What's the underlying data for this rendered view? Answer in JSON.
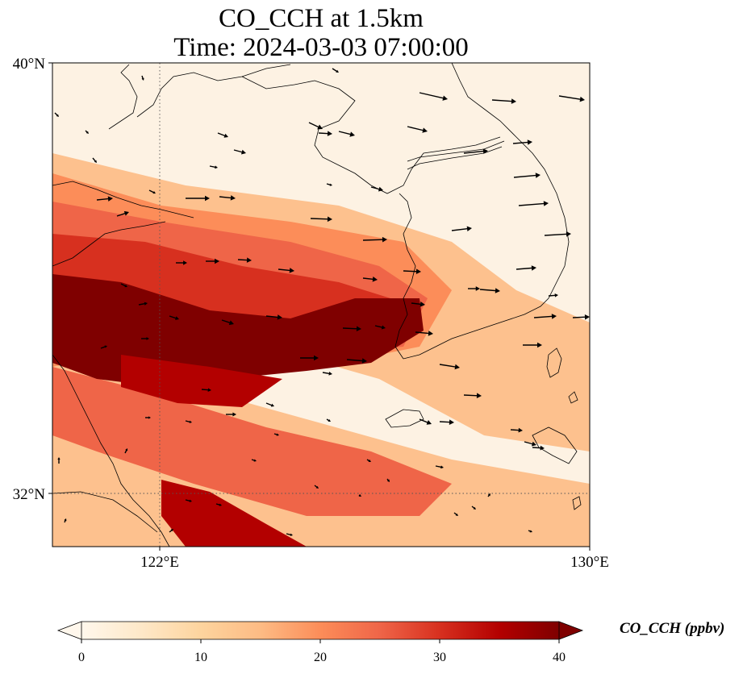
{
  "title": {
    "line1": "CO_CCH at 1.5km",
    "line2": "Time: 2024-03-03 07:00:00"
  },
  "map": {
    "type": "filled-field-with-wind-vectors",
    "variable": "CO_CCH",
    "level": "1.5km",
    "extent": {
      "lon_min": 119,
      "lon_max": 130,
      "lat_min": 31,
      "lat_max": 40
    },
    "lat_ticks": [
      {
        "value": 40,
        "label": "40°N"
      },
      {
        "value": 32,
        "label": "32°N"
      }
    ],
    "lon_ticks": [
      {
        "value": 122,
        "label": "122°E"
      },
      {
        "value": 130,
        "label": "130°E"
      }
    ],
    "gridlines": {
      "lats": [
        32
      ],
      "lons": [
        122
      ],
      "style": "dotted"
    },
    "colormap": "OrRd",
    "background_color": "#fdf2e3"
  },
  "colorbar": {
    "label": "CO_CCH (ppbv)",
    "min": 0,
    "max": 40,
    "extend": "both",
    "ticks": [
      {
        "value": 0,
        "label": "0"
      },
      {
        "value": 10,
        "label": "10"
      },
      {
        "value": 20,
        "label": "20"
      },
      {
        "value": 30,
        "label": "30"
      },
      {
        "value": 40,
        "label": "40"
      }
    ],
    "stops": [
      {
        "value": 0,
        "color": "#fff7ec"
      },
      {
        "value": 5,
        "color": "#fee8c8"
      },
      {
        "value": 10,
        "color": "#fdd49e"
      },
      {
        "value": 15,
        "color": "#fdbb84"
      },
      {
        "value": 20,
        "color": "#fc8d59"
      },
      {
        "value": 25,
        "color": "#ef6548"
      },
      {
        "value": 30,
        "color": "#d7301f"
      },
      {
        "value": 35,
        "color": "#b30000"
      },
      {
        "value": 40,
        "color": "#7f0000"
      }
    ]
  }
}
